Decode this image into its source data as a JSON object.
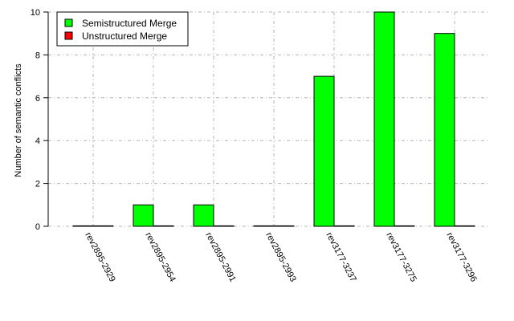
{
  "chart_data": {
    "type": "bar",
    "title": "",
    "xlabel": "",
    "ylabel": "Number of semantic conflicts",
    "categories": [
      "rev2895-2929",
      "rev2895-2954",
      "rev2895-2991",
      "rev2895-2993",
      "rev3177-3237",
      "rev3177-3275",
      "rev3177-3296"
    ],
    "series": [
      {
        "name": "Semistructured Merge",
        "color": "#00ff00",
        "values": [
          0,
          1,
          1,
          0,
          7,
          10,
          9
        ]
      },
      {
        "name": "Unstructured Merge",
        "color": "#ff0000",
        "values": [
          0,
          0,
          0,
          0,
          0,
          0,
          0
        ]
      }
    ],
    "ylim": [
      0,
      10
    ],
    "yticks": [
      0,
      2,
      4,
      6,
      8,
      10
    ],
    "grid": true,
    "legend_position": "top-left"
  }
}
